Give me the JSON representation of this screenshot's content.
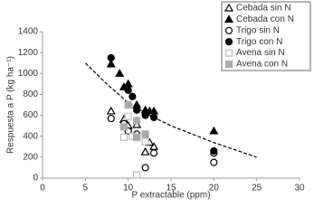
{
  "chart_data": {
    "type": "scatter",
    "x_label": "P extractable (ppm)",
    "y_label": "Respuesta a P (kg ha⁻¹)",
    "xlim": [
      0,
      30
    ],
    "xticks": [
      0,
      5,
      10,
      15,
      20,
      25,
      30
    ],
    "ylim": [
      0,
      1400
    ],
    "yticks": [
      0,
      200,
      400,
      600,
      800,
      1000,
      1200,
      1400
    ],
    "grid": false,
    "legend": "top-right",
    "series": [
      {
        "name": "Cebada sin N",
        "marker": "triangle",
        "filled": false,
        "color": "#000000",
        "x": [
          8,
          9.5,
          10,
          11,
          12,
          13,
          12.5
        ],
        "values": [
          640,
          560,
          500,
          510,
          250,
          300,
          340
        ]
      },
      {
        "name": "Cebada con N",
        "marker": "triangle",
        "filled": true,
        "color": "#000000",
        "x": [
          8,
          9,
          9.5,
          10,
          11,
          12,
          12.5,
          13,
          20
        ],
        "values": [
          1090,
          1000,
          870,
          900,
          700,
          650,
          640,
          640,
          450
        ]
      },
      {
        "name": "Trigo sin N",
        "marker": "circle",
        "filled": false,
        "color": "#000000",
        "x": [
          8,
          9.5,
          10,
          11,
          12,
          13,
          20,
          20
        ],
        "values": [
          570,
          520,
          450,
          420,
          100,
          240,
          240,
          150
        ]
      },
      {
        "name": "Trigo con N",
        "marker": "circle",
        "filled": true,
        "color": "#000000",
        "x": [
          8,
          10,
          10.5,
          11,
          12,
          13,
          20
        ],
        "values": [
          1150,
          840,
          780,
          650,
          600,
          580,
          260
        ]
      },
      {
        "name": "Avena sin N",
        "marker": "square",
        "filled": false,
        "color": "#bbbbbb",
        "x": [
          9.5,
          10.5,
          11,
          12,
          10
        ],
        "values": [
          390,
          400,
          30,
          350,
          590
        ]
      },
      {
        "name": "Avena con N",
        "marker": "square",
        "filled": true,
        "color": "#aaaaaa",
        "x": [
          9.5,
          10,
          11,
          12,
          11
        ],
        "values": [
          490,
          700,
          390,
          420,
          550
        ]
      }
    ],
    "trend": {
      "color": "#000000",
      "dashed": true,
      "x": [
        5,
        7.5,
        10,
        12.5,
        15,
        17.5,
        20,
        22.5,
        25
      ],
      "values": [
        1100,
        900,
        720,
        600,
        500,
        420,
        340,
        270,
        200
      ]
    }
  }
}
